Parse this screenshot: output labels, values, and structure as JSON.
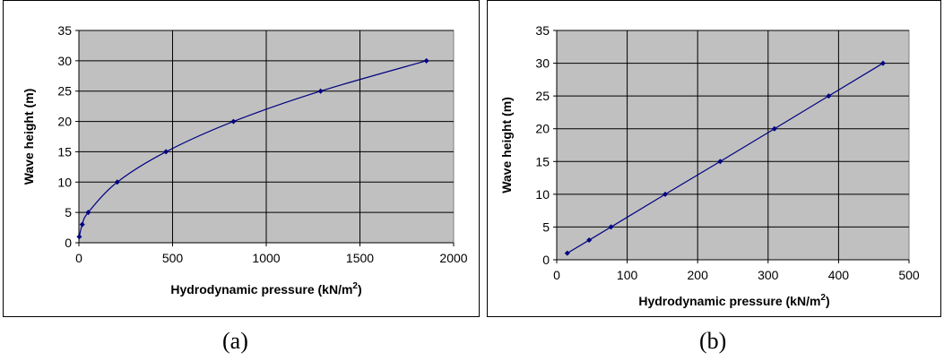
{
  "captions": {
    "a": "(a)",
    "b": "(b)"
  },
  "colors": {
    "plot_bg": "#c0c0c0",
    "series": "#000080",
    "grid": "#000000"
  },
  "chart_data": [
    {
      "id": "a",
      "type": "line",
      "title": "",
      "xlabel": "Hydrodynamic pressure  (kN/m",
      "xlabel_sup": "2",
      "xlabel_end": ")",
      "ylabel": "Wave height (m)",
      "xlim": [
        0,
        2000
      ],
      "ylim": [
        0,
        35
      ],
      "xticks": [
        0,
        500,
        1000,
        1500,
        2000
      ],
      "yticks": [
        0,
        5,
        10,
        15,
        20,
        25,
        30,
        35
      ],
      "grid": true,
      "legend": "none",
      "points": [
        {
          "x": 2,
          "y": 1
        },
        {
          "x": 18,
          "y": 3
        },
        {
          "x": 50,
          "y": 5
        },
        {
          "x": 205,
          "y": 10
        },
        {
          "x": 465,
          "y": 15
        },
        {
          "x": 825,
          "y": 20
        },
        {
          "x": 1290,
          "y": 25
        },
        {
          "x": 1855,
          "y": 30
        }
      ]
    },
    {
      "id": "b",
      "type": "line",
      "title": "",
      "xlabel": "Hydrodynamic pressure (kN/m",
      "xlabel_sup": "2",
      "xlabel_end": ")",
      "ylabel": "Wave height (m)",
      "xlim": [
        0,
        500
      ],
      "ylim": [
        0,
        35
      ],
      "xticks": [
        0,
        100,
        200,
        300,
        400,
        500
      ],
      "yticks": [
        0,
        5,
        10,
        15,
        20,
        25,
        30,
        35
      ],
      "grid": true,
      "legend": "none",
      "points": [
        {
          "x": 15,
          "y": 1
        },
        {
          "x": 46,
          "y": 3
        },
        {
          "x": 77,
          "y": 5
        },
        {
          "x": 154,
          "y": 10
        },
        {
          "x": 232,
          "y": 15
        },
        {
          "x": 309,
          "y": 20
        },
        {
          "x": 386,
          "y": 25
        },
        {
          "x": 463,
          "y": 30
        }
      ]
    }
  ]
}
